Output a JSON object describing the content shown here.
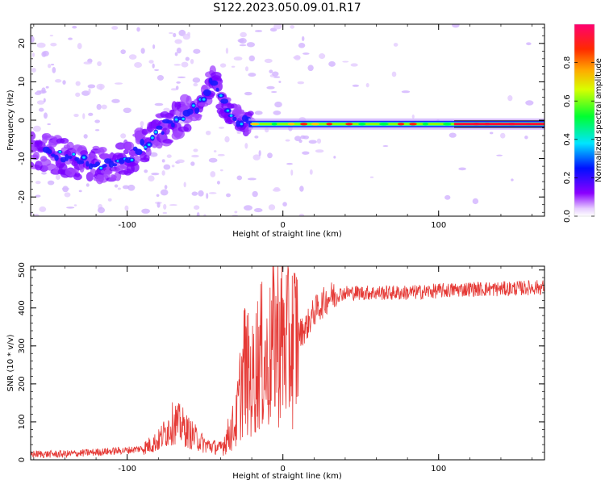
{
  "title": "S122.2023.050.09.01.R17",
  "chart_data": [
    {
      "type": "heatmap",
      "xlabel": "Height of straight line (km)",
      "ylabel": "Frequency (Hz)",
      "xlim": [
        -162,
        168
      ],
      "ylim": [
        -25,
        25
      ],
      "x_ticks": [
        -100,
        0,
        100
      ],
      "y_ticks": [
        -20,
        -10,
        0,
        10,
        20
      ],
      "colorbar": {
        "label": "Normalized spectral amplitude",
        "range": [
          0,
          1
        ],
        "ticks": [
          "0.0",
          "0.2",
          "0.4",
          "0.6",
          "0.8"
        ],
        "tick_values": [
          0,
          0.2,
          0.4,
          0.6,
          0.8
        ],
        "colormap": "rainbow (violet → blue → cyan → green → yellow → red)"
      },
      "ridge": [
        {
          "x": -155,
          "y": -8
        },
        {
          "x": -140,
          "y": -10
        },
        {
          "x": -125,
          "y": -11
        },
        {
          "x": -110,
          "y": -12
        },
        {
          "x": -100,
          "y": -10
        },
        {
          "x": -90,
          "y": -7
        },
        {
          "x": -80,
          "y": -3
        },
        {
          "x": -70,
          "y": 0
        },
        {
          "x": -60,
          "y": 2
        },
        {
          "x": -50,
          "y": 5
        },
        {
          "x": -45,
          "y": 12
        },
        {
          "x": -40,
          "y": 5
        },
        {
          "x": -35,
          "y": 3
        },
        {
          "x": -30,
          "y": 1
        },
        {
          "x": -25,
          "y": -1
        },
        {
          "x": -20,
          "y": -1
        },
        {
          "x": 0,
          "y": -1
        },
        {
          "x": 50,
          "y": -1
        },
        {
          "x": 100,
          "y": -1
        },
        {
          "x": 168,
          "y": -1
        }
      ]
    },
    {
      "type": "line",
      "xlabel": "Height of straight line (km)",
      "ylabel": "SNR (10 * v/v)",
      "xlim": [
        -162,
        168
      ],
      "ylim": [
        0,
        510
      ],
      "x_ticks": [
        -100,
        0,
        100
      ],
      "y_ticks": [
        0,
        100,
        200,
        300,
        400,
        500
      ],
      "series": [
        {
          "color": "#e53935",
          "envelope": [
            {
              "x": -162,
              "y": 15
            },
            {
              "x": -140,
              "y": 15
            },
            {
              "x": -120,
              "y": 20
            },
            {
              "x": -100,
              "y": 25
            },
            {
              "x": -90,
              "y": 30
            },
            {
              "x": -80,
              "y": 50
            },
            {
              "x": -70,
              "y": 100
            },
            {
              "x": -65,
              "y": 90
            },
            {
              "x": -60,
              "y": 70
            },
            {
              "x": -50,
              "y": 40
            },
            {
              "x": -40,
              "y": 30
            },
            {
              "x": -30,
              "y": 100
            },
            {
              "x": -25,
              "y": 250
            },
            {
              "x": -20,
              "y": 200
            },
            {
              "x": -15,
              "y": 280
            },
            {
              "x": -10,
              "y": 240
            },
            {
              "x": -5,
              "y": 330
            },
            {
              "x": 0,
              "y": 310
            },
            {
              "x": 5,
              "y": 300
            },
            {
              "x": 10,
              "y": 330
            },
            {
              "x": 15,
              "y": 350
            },
            {
              "x": 20,
              "y": 390
            },
            {
              "x": 30,
              "y": 430
            },
            {
              "x": 40,
              "y": 440
            },
            {
              "x": 60,
              "y": 440
            },
            {
              "x": 80,
              "y": 440
            },
            {
              "x": 100,
              "y": 445
            },
            {
              "x": 120,
              "y": 450
            },
            {
              "x": 140,
              "y": 450
            },
            {
              "x": 168,
              "y": 455
            }
          ]
        }
      ]
    }
  ]
}
